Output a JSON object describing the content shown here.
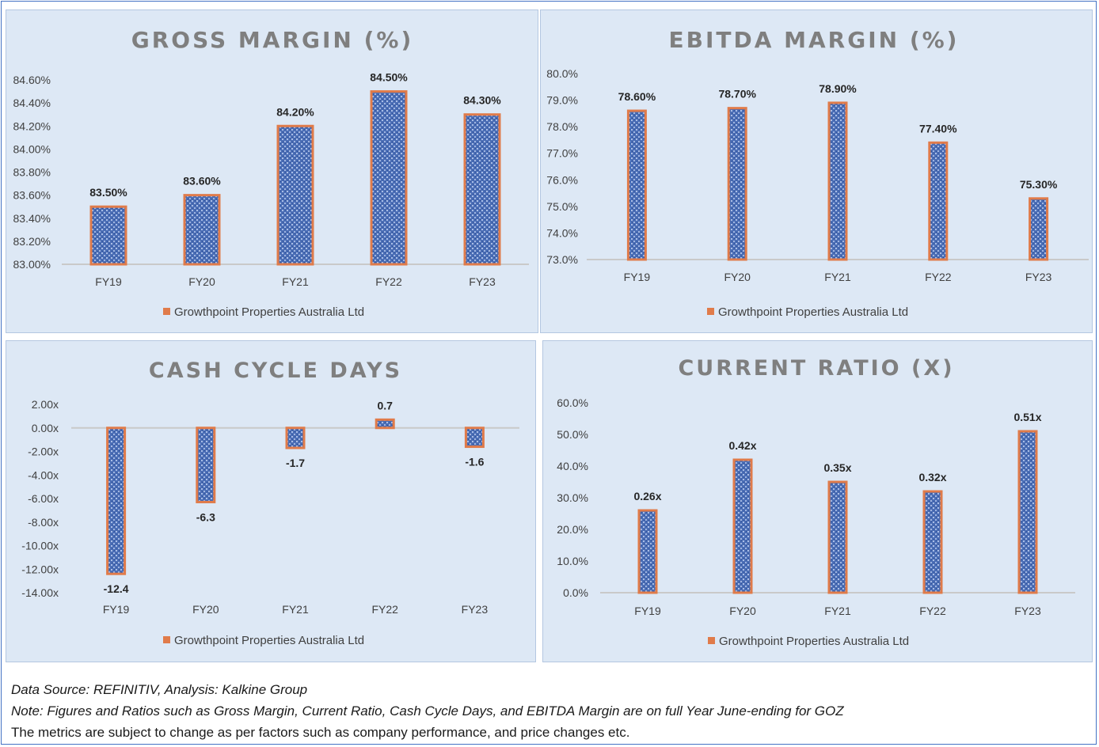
{
  "colors": {
    "panel_bg": "#dde8f5",
    "bar_fill": "#4a6db5",
    "bar_border": "#e07b4a",
    "title": "#7f7f7f"
  },
  "chart_data": [
    {
      "id": "gross-margin",
      "type": "bar",
      "title": "GROSS MARGIN (%)",
      "categories": [
        "FY19",
        "FY20",
        "FY21",
        "FY22",
        "FY23"
      ],
      "series": [
        {
          "name": "Growthpoint Properties Australia Ltd",
          "values": [
            83.5,
            83.6,
            84.2,
            84.5,
            84.3
          ]
        }
      ],
      "data_labels": [
        "83.50%",
        "83.60%",
        "84.20%",
        "84.50%",
        "84.30%"
      ],
      "yticks": [
        "83.00%",
        "83.20%",
        "83.40%",
        "83.60%",
        "83.80%",
        "84.00%",
        "84.20%",
        "84.40%",
        "84.60%"
      ],
      "ylim": [
        83.0,
        84.6
      ],
      "legend": "bottom"
    },
    {
      "id": "ebitda-margin",
      "type": "bar",
      "title": "EBITDA MARGIN (%)",
      "categories": [
        "FY19",
        "FY20",
        "FY21",
        "FY22",
        "FY23"
      ],
      "series": [
        {
          "name": "Growthpoint Properties Australia Ltd",
          "values": [
            78.6,
            78.7,
            78.9,
            77.4,
            75.3
          ]
        }
      ],
      "data_labels": [
        "78.60%",
        "78.70%",
        "78.90%",
        "77.40%",
        "75.30%"
      ],
      "yticks": [
        "73.0%",
        "74.0%",
        "75.0%",
        "76.0%",
        "77.0%",
        "78.0%",
        "79.0%",
        "80.0%"
      ],
      "ylim": [
        73.0,
        80.0
      ],
      "legend": "bottom"
    },
    {
      "id": "cash-cycle-days",
      "type": "bar",
      "title": "CASH CYCLE DAYS",
      "categories": [
        "FY19",
        "FY20",
        "FY21",
        "FY22",
        "FY23"
      ],
      "series": [
        {
          "name": "Growthpoint Properties Australia Ltd",
          "values": [
            -12.4,
            -6.3,
            -1.7,
            0.7,
            -1.6
          ]
        }
      ],
      "data_labels": [
        "-12.4",
        "-6.3",
        "-1.7",
        "0.7",
        "-1.6"
      ],
      "yticks": [
        "-14.00x",
        "-12.00x",
        "-10.00x",
        "-8.00x",
        "-6.00x",
        "-4.00x",
        "-2.00x",
        "0.00x",
        "2.00x"
      ],
      "ylim": [
        -14.0,
        2.0
      ],
      "legend": "bottom"
    },
    {
      "id": "current-ratio",
      "type": "bar",
      "title": "CURRENT RATIO (X)",
      "categories": [
        "FY19",
        "FY20",
        "FY21",
        "FY22",
        "FY23"
      ],
      "series": [
        {
          "name": "Growthpoint Properties Australia Ltd",
          "values": [
            0.26,
            0.42,
            0.35,
            0.32,
            0.51
          ]
        }
      ],
      "data_labels": [
        "0.26x",
        "0.42x",
        "0.35x",
        "0.32x",
        "0.51x"
      ],
      "yticks": [
        "0.0%",
        "10.0%",
        "20.0%",
        "30.0%",
        "40.0%",
        "50.0%",
        "60.0%"
      ],
      "ylim": [
        0.0,
        0.6
      ],
      "legend": "bottom"
    }
  ],
  "notes": {
    "source": "Data Source: REFINITIV, Analysis: Kalkine Group",
    "note": "Note: Figures and Ratios such as Gross Margin, Current Ratio, Cash Cycle Days, and EBITDA Margin are on full Year June-ending for GOZ",
    "disclaimer": "The metrics are subject to change as per factors such as company performance, and price changes etc."
  }
}
